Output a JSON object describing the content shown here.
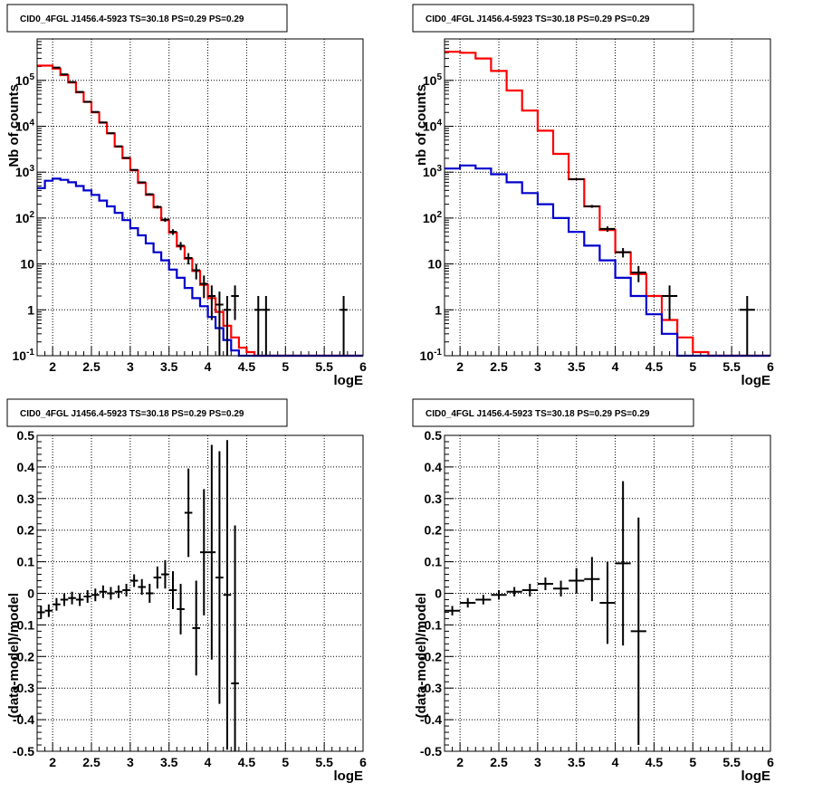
{
  "chart_data": [
    {
      "type": "step-line+errorbar",
      "title": "CID0_4FGL J1456.4-5923 TS=30.18 PS=0.29 PS=0.29",
      "xlabel": "logE",
      "ylabel": "Nb of counts",
      "xlim": [
        1.8,
        6.0
      ],
      "ylim": [
        0.1,
        800000
      ],
      "log_y": true,
      "grid": true,
      "x_ticks": [
        "2",
        "2.5",
        "3",
        "3.5",
        "4",
        "4.5",
        "5",
        "5.5",
        "6"
      ],
      "y_ticks": [
        "10^-1",
        "1",
        "10",
        "10^2",
        "10^3",
        "10^4",
        "10^5"
      ],
      "series": [
        {
          "color": "#ff0000",
          "bin_width": 0.1,
          "x": [
            1.85,
            1.95,
            2.05,
            2.15,
            2.25,
            2.35,
            2.45,
            2.55,
            2.65,
            2.75,
            2.85,
            2.95,
            3.05,
            3.15,
            3.25,
            3.35,
            3.45,
            3.55,
            3.65,
            3.75,
            3.85,
            3.95,
            4.05,
            4.15,
            4.25,
            4.35,
            4.45,
            4.55,
            4.65,
            4.75,
            4.85,
            4.95,
            5.05,
            5.15,
            5.25,
            5.35,
            5.45,
            5.55,
            5.65,
            5.75,
            5.85,
            5.95
          ],
          "values": [
            210000,
            210000,
            180000,
            130000,
            90000,
            55000,
            34000,
            20000,
            12000,
            7000,
            3600,
            2000,
            1100,
            580,
            320,
            170,
            90,
            48,
            24,
            13,
            7,
            3.5,
            1.8,
            0.9,
            0.45,
            0.25,
            0.15,
            0.12,
            0.1,
            0.1,
            0.1,
            0.1,
            0.1,
            0.1,
            0.1,
            0.1,
            0.1,
            0.1,
            0.1,
            0.1,
            0.1,
            0.1
          ]
        },
        {
          "color": "#0000cc",
          "bin_width": 0.1,
          "x": [
            1.85,
            1.95,
            2.05,
            2.15,
            2.25,
            2.35,
            2.45,
            2.55,
            2.65,
            2.75,
            2.85,
            2.95,
            3.05,
            3.15,
            3.25,
            3.35,
            3.45,
            3.55,
            3.65,
            3.75,
            3.85,
            3.95,
            4.05,
            4.15,
            4.25,
            4.35,
            4.45,
            4.55,
            4.65,
            4.75,
            4.85,
            4.95,
            5.05,
            5.15,
            5.25,
            5.35,
            5.45,
            5.55,
            5.65,
            5.75,
            5.85,
            5.95
          ],
          "values": [
            450,
            650,
            720,
            680,
            600,
            500,
            400,
            320,
            240,
            180,
            130,
            90,
            60,
            42,
            28,
            18,
            12,
            7.5,
            5,
            3,
            1.8,
            1.2,
            0.7,
            0.4,
            0.22,
            0.13,
            0.1,
            0.1,
            0.1,
            0.1,
            0.1,
            0.1,
            0.1,
            0.1,
            0.1,
            0.1,
            0.1,
            0.1,
            0.1,
            0.1,
            0.1,
            0.1
          ]
        }
      ],
      "data_points": {
        "x": [
          2.05,
          2.15,
          2.25,
          2.35,
          2.45,
          2.55,
          2.65,
          2.75,
          2.85,
          2.95,
          3.05,
          3.15,
          3.25,
          3.35,
          3.45,
          3.55,
          3.65,
          3.75,
          3.85,
          3.95,
          4.05,
          4.15,
          4.25,
          4.35,
          4.65,
          4.75,
          5.75
        ],
        "y": [
          190000,
          135000,
          92000,
          56000,
          34000,
          20500,
          12100,
          7050,
          3650,
          2050,
          1120,
          600,
          330,
          175,
          92,
          50,
          25,
          13.5,
          7.3,
          3.7,
          2,
          1.3,
          1,
          2,
          1,
          1,
          1
        ],
        "xerr": 0.05,
        "yerr": [
          440,
          370,
          300,
          240,
          185,
          145,
          110,
          84,
          60,
          45,
          33,
          25,
          18,
          13,
          9.6,
          7,
          5,
          3.7,
          2.7,
          1.9,
          1.4,
          1.2,
          1,
          1.4,
          1,
          1,
          1
        ]
      }
    },
    {
      "type": "step-line+errorbar",
      "title": "CID0_4FGL J1456.4-5923 TS=30.18 PS=0.29 PS=0.29",
      "xlabel": "logE",
      "ylabel": "nb of counts",
      "xlim": [
        1.8,
        6.0
      ],
      "ylim": [
        0.1,
        800000
      ],
      "log_y": true,
      "grid": true,
      "x_ticks": [
        "2",
        "2.5",
        "3",
        "3.5",
        "4",
        "4.5",
        "5",
        "5.5",
        "6"
      ],
      "y_ticks": [
        "10^-1",
        "1",
        "10",
        "10^2",
        "10^3",
        "10^4",
        "10^5"
      ],
      "series": [
        {
          "color": "#ff0000",
          "bin_width": 0.2,
          "x": [
            1.9,
            2.1,
            2.3,
            2.5,
            2.7,
            2.9,
            3.1,
            3.3,
            3.5,
            3.7,
            3.9,
            4.1,
            4.3,
            4.5,
            4.7,
            4.9,
            5.1,
            5.3,
            5.5,
            5.7,
            5.9
          ],
          "values": [
            420000,
            400000,
            300000,
            160000,
            60000,
            22000,
            8000,
            2500,
            700,
            180,
            55,
            18,
            6,
            2,
            0.6,
            0.25,
            0.12,
            0.1,
            0.1,
            0.1,
            0.1
          ]
        },
        {
          "color": "#0000cc",
          "bin_width": 0.2,
          "x": [
            1.9,
            2.1,
            2.3,
            2.5,
            2.7,
            2.9,
            3.1,
            3.3,
            3.5,
            3.7,
            3.9,
            4.1,
            4.3,
            4.5,
            4.7,
            4.9,
            5.1,
            5.3,
            5.5,
            5.7,
            5.9
          ],
          "values": [
            1200,
            1400,
            1200,
            900,
            600,
            350,
            200,
            100,
            50,
            25,
            12,
            5,
            2,
            0.8,
            0.3,
            0.1,
            0.1,
            0.1,
            0.1,
            0.1,
            0.1
          ]
        }
      ],
      "data_points": {
        "x": [
          3.5,
          3.7,
          3.9,
          4.1,
          4.3,
          4.7,
          5.7
        ],
        "y": [
          700,
          180,
          58,
          18,
          6.5,
          2,
          1
        ],
        "xerr": 0.1,
        "yerr": [
          26,
          13,
          7.6,
          4.2,
          2.5,
          1.4,
          1
        ]
      }
    },
    {
      "type": "errorbar",
      "title": "CID0_4FGL J1456.4-5923 TS=30.18 PS=0.29 PS=0.29",
      "xlabel": "logE",
      "ylabel": "(data-model)/model",
      "xlim": [
        1.8,
        6.0
      ],
      "ylim": [
        -0.5,
        0.5
      ],
      "grid": true,
      "x_ticks": [
        "2",
        "2.5",
        "3",
        "3.5",
        "4",
        "4.5",
        "5",
        "5.5",
        "6"
      ],
      "y_ticks": [
        "-0.5",
        "-0.4",
        "-0.3",
        "-0.2",
        "-0.1",
        "0",
        "0.1",
        "0.2",
        "0.3",
        "0.4",
        "0.5"
      ],
      "data_points": {
        "x": [
          1.85,
          1.95,
          2.05,
          2.15,
          2.25,
          2.35,
          2.45,
          2.55,
          2.65,
          2.75,
          2.85,
          2.95,
          3.05,
          3.15,
          3.25,
          3.35,
          3.45,
          3.55,
          3.65,
          3.75,
          3.85,
          3.95,
          4.05,
          4.15,
          4.25,
          4.35
        ],
        "y": [
          -0.06,
          -0.055,
          -0.035,
          -0.02,
          -0.015,
          -0.02,
          -0.01,
          -0.005,
          0.005,
          0.0,
          0.005,
          0.01,
          0.04,
          0.02,
          0.0,
          0.05,
          0.06,
          0.01,
          -0.05,
          0.255,
          -0.11,
          0.13,
          0.13,
          0.05,
          -0.005,
          -0.285
        ],
        "xerr": 0.05,
        "yerr": [
          0.02,
          0.02,
          0.02,
          0.02,
          0.02,
          0.02,
          0.02,
          0.02,
          0.02,
          0.02,
          0.02,
          0.02,
          0.02,
          0.025,
          0.03,
          0.035,
          0.045,
          0.06,
          0.08,
          0.14,
          0.15,
          0.2,
          0.34,
          0.4,
          0.49,
          0.5
        ]
      }
    },
    {
      "type": "errorbar",
      "title": "CID0_4FGL J1456.4-5923 TS=30.18 PS=0.29 PS=0.29",
      "xlabel": "logE",
      "ylabel": "(data-model)/model",
      "xlim": [
        1.8,
        6.0
      ],
      "ylim": [
        -0.5,
        0.5
      ],
      "grid": true,
      "x_ticks": [
        "2",
        "2.5",
        "3",
        "3.5",
        "4",
        "4.5",
        "5",
        "5.5",
        "6"
      ],
      "y_ticks": [
        "-0.5",
        "-0.4",
        "-0.3",
        "-0.2",
        "-0.1",
        "0",
        "0.1",
        "0.2",
        "0.3",
        "0.4",
        "0.5"
      ],
      "data_points": {
        "x": [
          1.9,
          2.1,
          2.3,
          2.5,
          2.7,
          2.9,
          3.1,
          3.3,
          3.5,
          3.7,
          3.9,
          4.1,
          4.3
        ],
        "y": [
          -0.055,
          -0.03,
          -0.02,
          -0.005,
          0.005,
          0.01,
          0.03,
          0.015,
          0.04,
          0.045,
          -0.03,
          0.095,
          -0.12
        ],
        "xerr": 0.1,
        "yerr": [
          0.015,
          0.015,
          0.015,
          0.015,
          0.015,
          0.02,
          0.02,
          0.025,
          0.04,
          0.07,
          0.13,
          0.26,
          0.36
        ]
      }
    }
  ]
}
